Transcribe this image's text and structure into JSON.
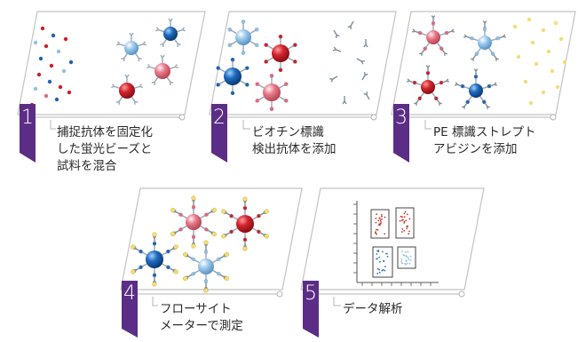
{
  "steps": [
    {
      "number": "1",
      "lines": [
        "捕捉抗体を固定化",
        "した蛍光ビーズと",
        "試料を混合"
      ]
    },
    {
      "number": "2",
      "lines": [
        "ビオチン標識",
        "検出抗体を添加"
      ]
    },
    {
      "number": "3",
      "lines": [
        "PE 標識ストレプト",
        "アビジンを添加"
      ]
    },
    {
      "number": "4",
      "lines": [
        "フローサイト",
        "メーターで測定"
      ]
    },
    {
      "number": "5",
      "lines": [
        "データ解析"
      ]
    }
  ],
  "colors": {
    "tab": "#5b2d86",
    "panel_border": "#bdbdbd",
    "bead_red": "#c8202a",
    "bead_pink": "#e0697a",
    "bead_blue": "#1e63b0",
    "bead_lightblue": "#8fc0e6",
    "pe_yellow": "#f3dc7a",
    "plot_red": "#c0392b",
    "plot_blue": "#2c6fb8"
  }
}
